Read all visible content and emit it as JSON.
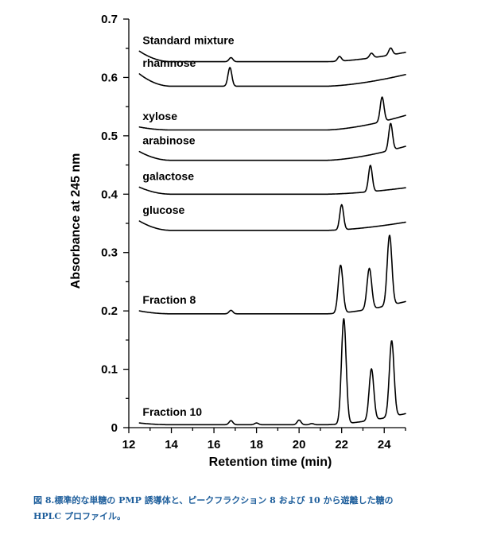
{
  "chart_data": {
    "type": "line",
    "xlabel": "Retention time (min)",
    "ylabel": "Absorbance at 245 nm",
    "xlim": [
      12,
      25
    ],
    "ylim": [
      0,
      0.7
    ],
    "x_ticks": [
      12,
      14,
      16,
      18,
      20,
      22,
      24
    ],
    "y_ticks": [
      0,
      0.1,
      0.2,
      0.3,
      0.4,
      0.5,
      0.6,
      0.7
    ],
    "y_tick_labels": [
      "0",
      "0.1",
      "0.2",
      "0.3",
      "0.4",
      "0.5",
      "0.6",
      "0.7"
    ],
    "x_tick_labels": [
      "12",
      "14",
      "16",
      "18",
      "20",
      "22",
      "24"
    ],
    "grid": false,
    "series": [
      {
        "name": "Standard mixture",
        "baseline": {
          "start": 0.645,
          "dip": 0.627,
          "end": 0.643
        },
        "peaks": [
          {
            "x": 16.8,
            "height": 0.007
          },
          {
            "x": 21.9,
            "height": 0.008
          },
          {
            "x": 23.4,
            "height": 0.008
          },
          {
            "x": 24.3,
            "height": 0.012
          }
        ]
      },
      {
        "name": "rhamnose",
        "baseline": {
          "start": 0.606,
          "dip": 0.585,
          "end": 0.605
        },
        "peaks": [
          {
            "x": 16.75,
            "height": 0.032
          }
        ]
      },
      {
        "name": "xylose",
        "baseline": {
          "start": 0.515,
          "dip": 0.51,
          "end": 0.535
        },
        "peaks": [
          {
            "x": 23.9,
            "height": 0.042
          }
        ]
      },
      {
        "name": "arabinose",
        "baseline": {
          "start": 0.473,
          "dip": 0.458,
          "end": 0.482
        },
        "peaks": [
          {
            "x": 24.3,
            "height": 0.046
          }
        ]
      },
      {
        "name": "galactose",
        "baseline": {
          "start": 0.412,
          "dip": 0.4,
          "end": 0.411
        },
        "peaks": [
          {
            "x": 23.35,
            "height": 0.045
          }
        ]
      },
      {
        "name": "glucose",
        "baseline": {
          "start": 0.354,
          "dip": 0.338,
          "end": 0.352
        },
        "peaks": [
          {
            "x": 22.0,
            "height": 0.043
          }
        ]
      },
      {
        "name": "Fraction 8",
        "baseline": {
          "start": 0.2,
          "dip": 0.195,
          "end": 0.216
        },
        "peaks": [
          {
            "x": 16.8,
            "height": 0.006
          },
          {
            "x": 21.95,
            "height": 0.082
          },
          {
            "x": 23.3,
            "height": 0.07
          },
          {
            "x": 24.25,
            "height": 0.12
          }
        ]
      },
      {
        "name": "Fraction 10",
        "baseline": {
          "start": 0.008,
          "dip": 0.005,
          "end": 0.024
        },
        "peaks": [
          {
            "x": 16.8,
            "height": 0.007
          },
          {
            "x": 18.0,
            "height": 0.003
          },
          {
            "x": 20.0,
            "height": 0.008
          },
          {
            "x": 20.6,
            "height": 0.002
          },
          {
            "x": 22.1,
            "height": 0.18
          },
          {
            "x": 23.4,
            "height": 0.088
          },
          {
            "x": 24.35,
            "height": 0.13
          }
        ]
      }
    ]
  },
  "caption": {
    "line1": "図 8.標準的な単糖の PMP 誘導体と、ピークフラクション 8 および 10 から遊離した糖の",
    "line2": "HPLC プロファイル。"
  }
}
